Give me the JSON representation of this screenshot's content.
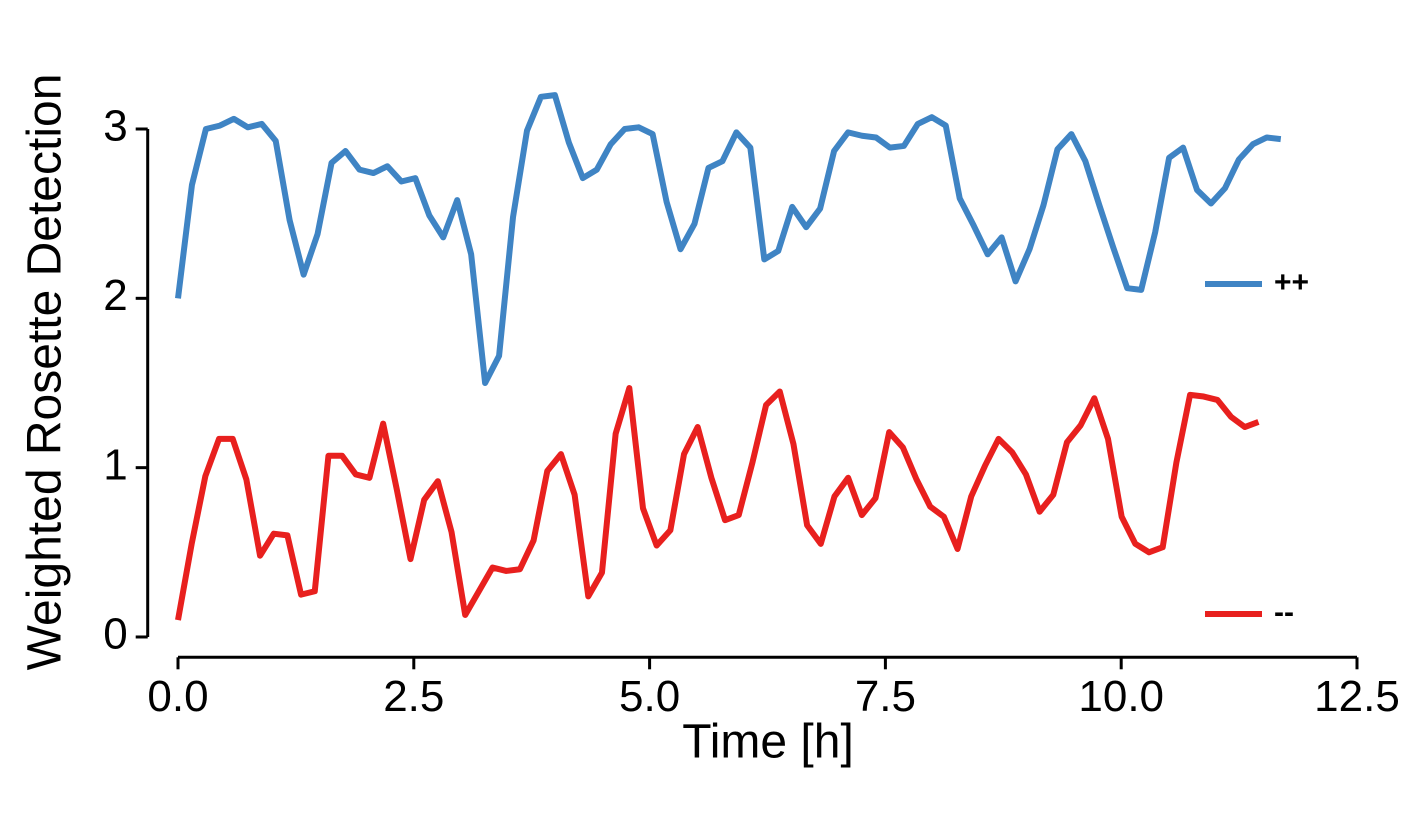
{
  "chart_data": {
    "type": "line",
    "xlabel": "Time [h]",
    "ylabel": "Weighted Rosette Detection",
    "xlim": [
      -0.3,
      12.5
    ],
    "ylim": [
      -0.12,
      3.3
    ],
    "xticks": [
      {
        "value": 0,
        "label": "0.0"
      },
      2.5,
      {
        "value": 5,
        "label": "5.0"
      },
      7.5,
      {
        "value": 10,
        "label": "10.0"
      },
      12.5
    ],
    "yticks": [
      0,
      1,
      2,
      3
    ],
    "grid": false,
    "legend": "right",
    "series": [
      {
        "name": "++",
        "color": "#3f84c4",
        "x": [
          0,
          0.148,
          0.296,
          0.444,
          0.592,
          0.74,
          0.888,
          1.036,
          1.184,
          1.332,
          1.48,
          1.628,
          1.776,
          1.924,
          2.072,
          2.22,
          2.368,
          2.516,
          2.664,
          2.812,
          2.96,
          3.108,
          3.256,
          3.404,
          3.552,
          3.7,
          3.848,
          3.996,
          4.144,
          4.292,
          4.44,
          4.588,
          4.736,
          4.884,
          5.032,
          5.18,
          5.328,
          5.476,
          5.624,
          5.772,
          5.92,
          6.068,
          6.216,
          6.364,
          6.512,
          6.66,
          6.808,
          6.956,
          7.104,
          7.252,
          7.4,
          7.548,
          7.696,
          7.844,
          7.992,
          8.14,
          8.288,
          8.436,
          8.584,
          8.732,
          8.88,
          9.028,
          9.176,
          9.324,
          9.472,
          9.62,
          9.768,
          9.916,
          10.064,
          10.212,
          10.36,
          10.508,
          10.656,
          10.804,
          10.952,
          11.1,
          11.248,
          11.396,
          11.544,
          11.692
        ],
        "values": [
          2.0,
          2.67,
          3.0,
          3.02,
          3.06,
          3.01,
          3.03,
          2.93,
          2.46,
          2.14,
          2.38,
          2.8,
          2.87,
          2.76,
          2.74,
          2.78,
          2.69,
          2.71,
          2.49,
          2.36,
          2.58,
          2.26,
          1.5,
          1.66,
          2.48,
          2.99,
          3.19,
          3.2,
          2.92,
          2.71,
          2.76,
          2.91,
          3.0,
          3.01,
          2.97,
          2.57,
          2.29,
          2.44,
          2.77,
          2.81,
          2.98,
          2.89,
          2.23,
          2.28,
          2.54,
          2.42,
          2.53,
          2.87,
          2.98,
          2.96,
          2.95,
          2.89,
          2.9,
          3.03,
          3.07,
          3.02,
          2.59,
          2.43,
          2.26,
          2.36,
          2.1,
          2.29,
          2.55,
          2.88,
          2.97,
          2.81,
          2.55,
          2.3,
          2.06,
          2.05,
          2.39,
          2.83,
          2.89,
          2.64,
          2.56,
          2.65,
          2.82,
          2.91,
          2.95,
          2.94
        ]
      },
      {
        "name": "--",
        "color": "#e8201e",
        "x": [
          0,
          0.145,
          0.29,
          0.435,
          0.58,
          0.725,
          0.87,
          1.015,
          1.16,
          1.305,
          1.45,
          1.595,
          1.74,
          1.885,
          2.03,
          2.175,
          2.32,
          2.465,
          2.61,
          2.755,
          2.9,
          3.045,
          3.19,
          3.335,
          3.48,
          3.625,
          3.77,
          3.915,
          4.06,
          4.205,
          4.35,
          4.495,
          4.64,
          4.785,
          4.93,
          5.075,
          5.22,
          5.365,
          5.51,
          5.655,
          5.8,
          5.945,
          6.09,
          6.235,
          6.38,
          6.525,
          6.67,
          6.815,
          6.96,
          7.105,
          7.25,
          7.395,
          7.54,
          7.685,
          7.83,
          7.975,
          8.12,
          8.265,
          8.41,
          8.555,
          8.7,
          8.845,
          8.99,
          9.135,
          9.28,
          9.425,
          9.57,
          9.715,
          9.86,
          10.005,
          10.15,
          10.295,
          10.44,
          10.585,
          10.73,
          10.875,
          11.02,
          11.165,
          11.31,
          11.455
        ],
        "values": [
          0.1,
          0.55,
          0.95,
          1.17,
          1.17,
          0.93,
          0.48,
          0.61,
          0.6,
          0.25,
          0.27,
          1.07,
          1.07,
          0.96,
          0.94,
          1.26,
          0.87,
          0.46,
          0.81,
          0.92,
          0.62,
          0.13,
          0.27,
          0.41,
          0.39,
          0.4,
          0.57,
          0.98,
          1.08,
          0.84,
          0.24,
          0.38,
          1.2,
          1.47,
          0.76,
          0.54,
          0.63,
          1.08,
          1.24,
          0.94,
          0.69,
          0.72,
          1.03,
          1.37,
          1.45,
          1.14,
          0.66,
          0.55,
          0.83,
          0.94,
          0.72,
          0.82,
          1.21,
          1.12,
          0.93,
          0.77,
          0.71,
          0.52,
          0.83,
          1.01,
          1.17,
          1.09,
          0.96,
          0.74,
          0.84,
          1.15,
          1.25,
          1.41,
          1.17,
          0.71,
          0.55,
          0.5,
          0.53,
          1.03,
          1.43,
          1.42,
          1.4,
          1.3,
          1.24,
          1.27
        ]
      }
    ]
  }
}
